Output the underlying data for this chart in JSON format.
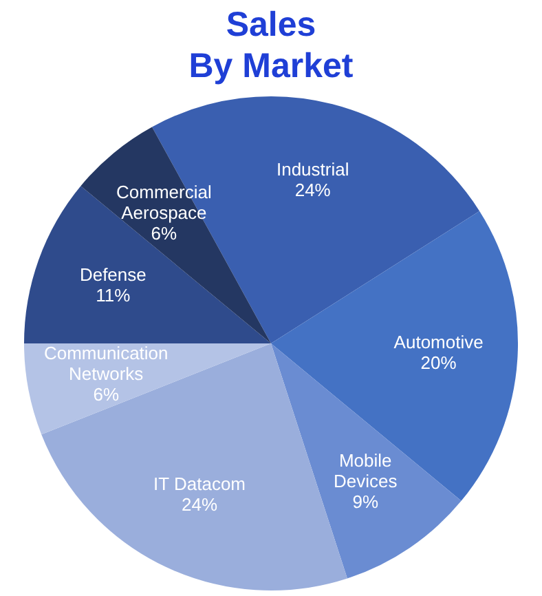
{
  "chart_data": {
    "type": "pie",
    "title": "Sales",
    "subtitle": "By Market",
    "categories": [
      "Industrial",
      "Automotive",
      "Mobile Devices",
      "IT Datacom",
      "Communication Networks",
      "Defense",
      "Commercial Aerospace"
    ],
    "values": [
      24,
      20,
      9,
      24,
      6,
      11,
      6
    ],
    "value_labels": [
      "24%",
      "20%",
      "9%",
      "24%",
      "6%",
      "11%",
      "6%"
    ],
    "colors": [
      "#3a5fb0",
      "#4472c4",
      "#6a8cd2",
      "#9aaedc",
      "#b4c3e6",
      "#2f4b8c",
      "#243762"
    ],
    "legend": false
  }
}
